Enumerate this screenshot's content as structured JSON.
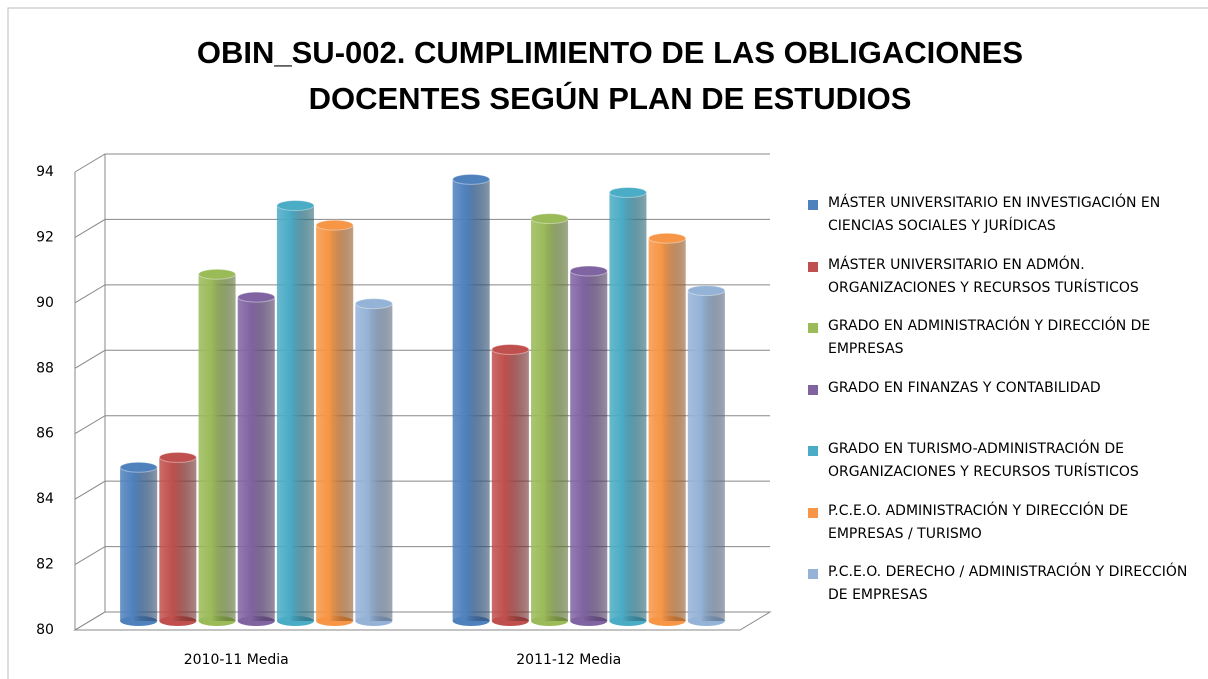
{
  "chart_data": {
    "type": "bar3d",
    "title": "OBIN_SU-002. CUMPLIMIENTO DE LAS OBLIGACIONES DOCENTES SEGÚN PLAN DE ESTUDIOS",
    "categories": [
      "2010-11 Media",
      "2011-12 Media"
    ],
    "series": [
      {
        "name": "MÁSTER UNIVERSITARIO EN INVESTIGACIÓN EN CIENCIAS SOCIALES Y JURÍDICAS",
        "color": "#4f81bd",
        "values": [
          84.7,
          93.5
        ]
      },
      {
        "name": "MÁSTER UNIVERSITARIO EN ADMÓN. ORGANIZACIONES Y RECURSOS TURÍSTICOS",
        "color": "#c0504d",
        "values": [
          85.0,
          88.3
        ]
      },
      {
        "name": "GRADO EN ADMINISTRACIÓN Y DIRECCIÓN DE EMPRESAS",
        "color": "#9bbb59",
        "values": [
          90.6,
          92.3
        ]
      },
      {
        "name": "GRADO EN FINANZAS Y CONTABILIDAD",
        "color": "#8064a2",
        "values": [
          89.9,
          90.7
        ]
      },
      {
        "name": "GRADO EN TURISMO-ADMINISTRACIÓN DE ORGANIZACIONES Y RECURSOS TURÍSTICOS",
        "color": "#4bacc6",
        "values": [
          92.7,
          93.1
        ]
      },
      {
        "name": "P.C.E.O. ADMINISTRACIÓN Y DIRECCIÓN DE EMPRESAS / TURISMO",
        "color": "#f79646",
        "values": [
          92.1,
          91.7
        ]
      },
      {
        "name": "P.C.E.O. DERECHO / ADMINISTRACIÓN Y DIRECCIÓN DE EMPRESAS",
        "color": "#95b3d7",
        "values": [
          89.7,
          90.1
        ]
      }
    ],
    "ylim": [
      80,
      94
    ],
    "yticks": [
      80,
      82,
      84,
      86,
      88,
      90,
      92,
      94
    ],
    "grid": true,
    "legend": "right"
  }
}
